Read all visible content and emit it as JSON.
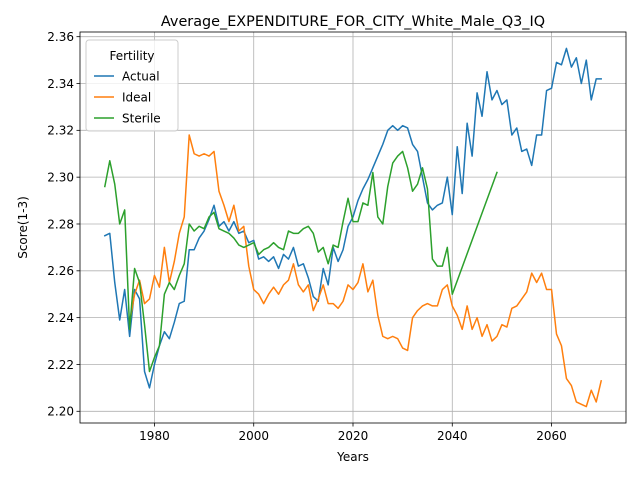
{
  "chart_data": {
    "type": "line",
    "title": "Average_EXPENDITURE_FOR_CITY_White_Male_Q3_IQ",
    "xlabel": "Years",
    "ylabel": "Score(1-3)",
    "xlim": [
      1965,
      2075
    ],
    "ylim": [
      2.195,
      2.362
    ],
    "xticks": [
      1980,
      2000,
      2020,
      2040,
      2060
    ],
    "yticks": [
      2.2,
      2.22,
      2.24,
      2.26,
      2.28,
      2.3,
      2.32,
      2.34,
      2.36
    ],
    "grid": true,
    "legend": {
      "title": "Fertility",
      "placement": "top-left"
    },
    "series": [
      {
        "name": "Actual",
        "color": "#1f77b4",
        "x": [
          1970,
          1971,
          1972,
          1973,
          1974,
          1975,
          1976,
          1977,
          1978,
          1979,
          1980,
          1981,
          1982,
          1983,
          1984,
          1985,
          1986,
          1987,
          1988,
          1989,
          1990,
          1991,
          1992,
          1993,
          1994,
          1995,
          1996,
          1997,
          1998,
          1999,
          2000,
          2001,
          2002,
          2003,
          2004,
          2005,
          2006,
          2007,
          2008,
          2009,
          2010,
          2011,
          2012,
          2013,
          2014,
          2015,
          2016,
          2017,
          2018,
          2019,
          2020,
          2021,
          2022,
          2023,
          2024,
          2025,
          2026,
          2027,
          2028,
          2029,
          2030,
          2031,
          2032,
          2033,
          2034,
          2035,
          2036,
          2037,
          2038,
          2039,
          2040,
          2041,
          2042,
          2043,
          2044,
          2045,
          2046,
          2047,
          2048,
          2049,
          2050,
          2051,
          2052,
          2053,
          2054,
          2055,
          2056,
          2057,
          2058,
          2059,
          2060,
          2061,
          2062,
          2063,
          2064,
          2065,
          2066,
          2067,
          2068,
          2069,
          2070
        ],
        "values": [
          2.275,
          2.276,
          2.255,
          2.239,
          2.252,
          2.232,
          2.252,
          2.248,
          2.217,
          2.21,
          2.22,
          2.228,
          2.234,
          2.231,
          2.238,
          2.246,
          2.247,
          2.269,
          2.269,
          2.274,
          2.277,
          2.282,
          2.288,
          2.279,
          2.281,
          2.277,
          2.281,
          2.276,
          2.277,
          2.272,
          2.273,
          2.265,
          2.266,
          2.264,
          2.266,
          2.261,
          2.267,
          2.265,
          2.27,
          2.262,
          2.263,
          2.257,
          2.249,
          2.247,
          2.261,
          2.254,
          2.27,
          2.264,
          2.269,
          2.279,
          2.283,
          2.29,
          2.295,
          2.299,
          2.304,
          2.309,
          2.314,
          2.32,
          2.322,
          2.32,
          2.322,
          2.321,
          2.314,
          2.311,
          2.3,
          2.289,
          2.286,
          2.288,
          2.289,
          2.3,
          2.284,
          2.313,
          2.293,
          2.323,
          2.309,
          2.336,
          2.326,
          2.345,
          2.333,
          2.337,
          2.331,
          2.333,
          2.318,
          2.321,
          2.311,
          2.312,
          2.305,
          2.318,
          2.318,
          2.337,
          2.338,
          2.349,
          2.348,
          2.355,
          2.347,
          2.351,
          2.34,
          2.35,
          2.333,
          2.342,
          2.342
        ]
      },
      {
        "name": "Ideal",
        "color": "#ff7f0e",
        "x": [
          1975,
          1976,
          1977,
          1978,
          1979,
          1980,
          1981,
          1982,
          1983,
          1984,
          1985,
          1986,
          1987,
          1988,
          1989,
          1990,
          1991,
          1992,
          1993,
          1994,
          1995,
          1996,
          1997,
          1998,
          1999,
          2000,
          2001,
          2002,
          2003,
          2004,
          2005,
          2006,
          2007,
          2008,
          2009,
          2010,
          2011,
          2012,
          2013,
          2014,
          2015,
          2016,
          2017,
          2018,
          2019,
          2020,
          2021,
          2022,
          2023,
          2024,
          2025,
          2026,
          2027,
          2028,
          2029,
          2030,
          2031,
          2032,
          2033,
          2034,
          2035,
          2036,
          2037,
          2038,
          2039,
          2040,
          2041,
          2042,
          2043,
          2044,
          2045,
          2046,
          2047,
          2048,
          2049,
          2050,
          2051,
          2052,
          2053,
          2054,
          2055,
          2056,
          2057,
          2058,
          2059,
          2060,
          2061,
          2062,
          2063,
          2064,
          2065,
          2066,
          2067,
          2068,
          2069,
          2070
        ],
        "values": [
          2.238,
          2.25,
          2.256,
          2.246,
          2.248,
          2.258,
          2.253,
          2.27,
          2.255,
          2.264,
          2.276,
          2.283,
          2.318,
          2.31,
          2.309,
          2.31,
          2.309,
          2.311,
          2.294,
          2.288,
          2.281,
          2.288,
          2.277,
          2.279,
          2.262,
          2.252,
          2.25,
          2.246,
          2.25,
          2.253,
          2.25,
          2.254,
          2.256,
          2.263,
          2.254,
          2.251,
          2.254,
          2.243,
          2.248,
          2.254,
          2.246,
          2.246,
          2.244,
          2.247,
          2.254,
          2.252,
          2.255,
          2.263,
          2.251,
          2.256,
          2.241,
          2.232,
          2.231,
          2.232,
          2.231,
          2.227,
          2.226,
          2.24,
          2.243,
          2.245,
          2.246,
          2.245,
          2.245,
          2.252,
          2.254,
          2.245,
          2.241,
          2.235,
          2.245,
          2.235,
          2.24,
          2.232,
          2.237,
          2.23,
          2.232,
          2.237,
          2.236,
          2.244,
          2.245,
          2.248,
          2.251,
          2.259,
          2.255,
          2.259,
          2.252,
          2.252,
          2.233,
          2.228,
          2.214,
          2.211,
          2.204,
          2.203,
          2.202,
          2.209,
          2.204,
          2.213
        ]
      },
      {
        "name": "Sterile",
        "color": "#2ca02c",
        "x": [
          1970,
          1971,
          1972,
          1973,
          1974,
          1975,
          1976,
          1977,
          1978,
          1979,
          1980,
          1981,
          1982,
          1983,
          1984,
          1985,
          1986,
          1987,
          1988,
          1989,
          1990,
          1991,
          1992,
          1993,
          1994,
          1995,
          1996,
          1997,
          1998,
          1999,
          2000,
          2001,
          2002,
          2003,
          2004,
          2005,
          2006,
          2007,
          2008,
          2009,
          2010,
          2011,
          2012,
          2013,
          2014,
          2015,
          2016,
          2017,
          2018,
          2019,
          2020,
          2021,
          2022,
          2023,
          2024,
          2025,
          2026,
          2027,
          2028,
          2029,
          2030,
          2031,
          2032,
          2033,
          2034,
          2035,
          2036,
          2037,
          2038,
          2039,
          2040,
          2049
        ],
        "values": [
          2.296,
          2.307,
          2.297,
          2.28,
          2.286,
          2.235,
          2.261,
          2.255,
          2.237,
          2.217,
          2.223,
          2.228,
          2.25,
          2.255,
          2.252,
          2.258,
          2.263,
          2.28,
          2.277,
          2.279,
          2.278,
          2.283,
          2.285,
          2.278,
          2.277,
          2.276,
          2.274,
          2.271,
          2.27,
          2.271,
          2.272,
          2.267,
          2.269,
          2.27,
          2.272,
          2.27,
          2.269,
          2.277,
          2.276,
          2.276,
          2.278,
          2.279,
          2.276,
          2.268,
          2.27,
          2.263,
          2.271,
          2.27,
          2.281,
          2.291,
          2.281,
          2.281,
          2.289,
          2.288,
          2.302,
          2.283,
          2.28,
          2.296,
          2.306,
          2.309,
          2.311,
          2.304,
          2.294,
          2.297,
          2.304,
          2.295,
          2.265,
          2.262,
          2.262,
          2.27,
          2.25,
          2.302
        ]
      }
    ]
  }
}
